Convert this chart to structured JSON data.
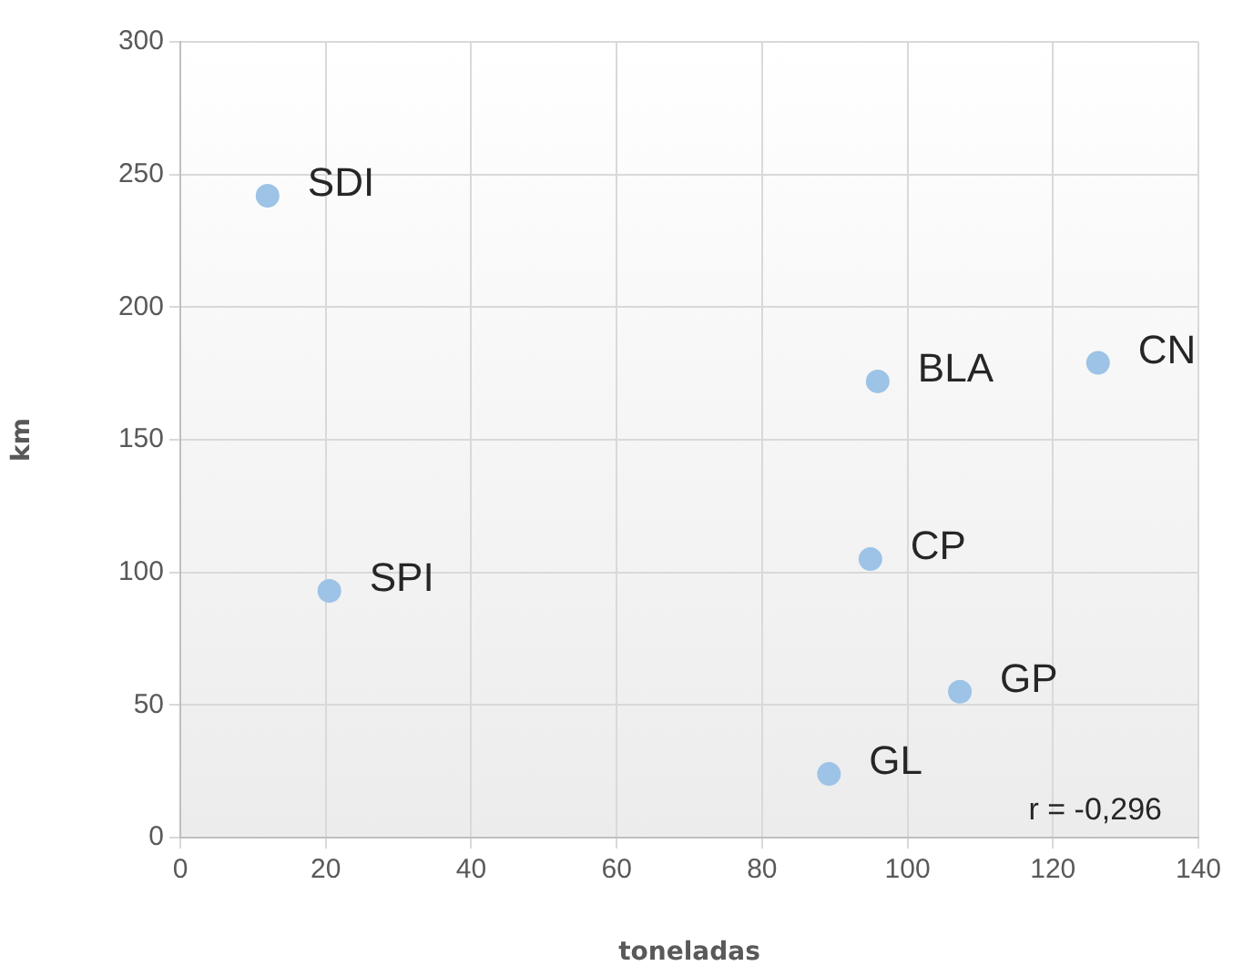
{
  "chart_data": {
    "type": "scatter",
    "xlabel": "toneladas",
    "ylabel": "km",
    "x": [
      12,
      20.5,
      95.9,
      126.2,
      94.9,
      107.2,
      89.2
    ],
    "values": [
      242,
      93,
      172,
      179,
      105,
      55,
      24
    ],
    "color": "#9dc3e6",
    "marker": "circle",
    "xlim": [
      0,
      140
    ],
    "xticks": [
      0,
      20,
      40,
      60,
      80,
      100,
      120,
      140
    ],
    "ylim": [
      0,
      300
    ],
    "yticks": [
      0,
      50,
      100,
      150,
      200,
      250,
      300
    ],
    "grid": true,
    "legend": false,
    "annotations": [
      {
        "text": "SDI",
        "x": 12,
        "y": 242
      },
      {
        "text": "SPI",
        "x": 20.5,
        "y": 93
      },
      {
        "text": "BLA",
        "x": 95.9,
        "y": 172
      },
      {
        "text": "CN",
        "x": 126.2,
        "y": 179
      },
      {
        "text": "CP",
        "x": 94.9,
        "y": 105
      },
      {
        "text": "GP",
        "x": 107.2,
        "y": 55
      },
      {
        "text": "GL",
        "x": 89.2,
        "y": 24
      },
      "r = -0,296"
    ]
  }
}
